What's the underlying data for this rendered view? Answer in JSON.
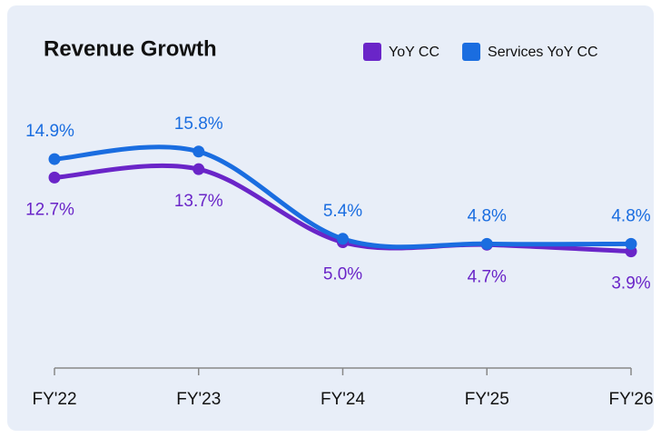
{
  "chart_data": {
    "type": "line",
    "title": "Revenue Growth",
    "categories": [
      "FY'22",
      "FY'23",
      "FY'24",
      "FY'25",
      "FY'26"
    ],
    "series": [
      {
        "name": "YoY CC",
        "color": "#6a25c8",
        "values": [
          12.7,
          13.7,
          5.0,
          4.7,
          3.9
        ],
        "value_labels": [
          "12.7%",
          "13.7%",
          "5.0%",
          "4.7%",
          "3.9%"
        ]
      },
      {
        "name": "Services YoY CC",
        "color": "#1a6de0",
        "values": [
          14.9,
          15.8,
          5.4,
          4.8,
          4.8
        ],
        "value_labels": [
          "14.9%",
          "15.8%",
          "5.4%",
          "4.8%",
          "4.8%"
        ]
      }
    ],
    "ylim": [
      -10,
      20
    ],
    "legend": "top-right"
  }
}
